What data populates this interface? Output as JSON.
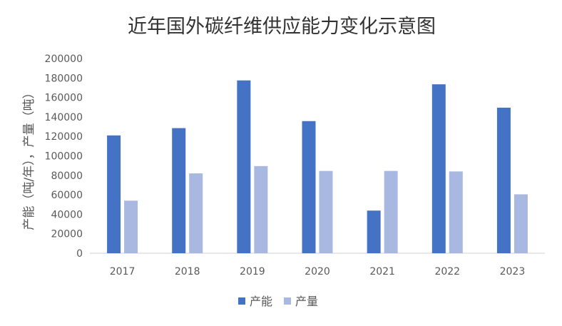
{
  "chart_data": {
    "type": "bar",
    "title": "近年国外碳纤维供应能力变化示意图",
    "xlabel": "",
    "ylabel": "产能（吨/年），产量（吨）",
    "categories": [
      "2017",
      "2018",
      "2019",
      "2020",
      "2021",
      "2022",
      "2023"
    ],
    "ylim": [
      0,
      200000
    ],
    "yticks": [
      0,
      20000,
      40000,
      60000,
      80000,
      100000,
      120000,
      140000,
      160000,
      180000,
      200000
    ],
    "grid": false,
    "legend_position": "bottom",
    "series": [
      {
        "name": "产能",
        "color": "#4472C4",
        "values": [
          121000,
          128500,
          177500,
          135700,
          43800,
          173500,
          149500
        ]
      },
      {
        "name": "产量",
        "color": "#A9B8E0",
        "values": [
          54000,
          82000,
          89500,
          84500,
          84500,
          84000,
          60500
        ]
      }
    ]
  }
}
